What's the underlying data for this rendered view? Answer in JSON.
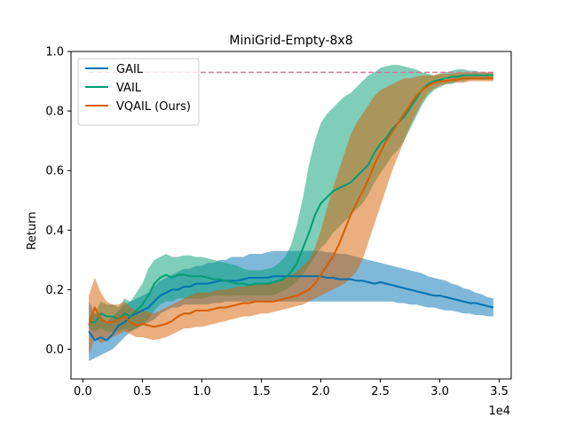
{
  "chart_data": {
    "type": "line",
    "title": "MiniGrid-Empty-8x8",
    "xlabel": "",
    "ylabel": "Return",
    "x_multiplier_label": "1e4",
    "xlim": [
      -1000,
      36000
    ],
    "ylim": [
      -0.1,
      1.0
    ],
    "x_ticks": [
      0,
      5000,
      10000,
      15000,
      20000,
      25000,
      30000,
      35000
    ],
    "x_tick_labels": [
      "0.0",
      "0.5",
      "1.0",
      "1.5",
      "2.0",
      "2.5",
      "3.0",
      "3.5"
    ],
    "y_ticks": [
      0.0,
      0.2,
      0.4,
      0.6,
      0.8,
      1.0
    ],
    "y_tick_labels": [
      "0.0",
      "0.2",
      "0.4",
      "0.6",
      "0.8",
      "1.0"
    ],
    "grid": false,
    "legend_position": "top-left",
    "reference_line": {
      "y": 0.93,
      "x_start": 500,
      "x_end": 34500,
      "color": "#d4759b",
      "style": "dashed"
    },
    "x": [
      500,
      1000,
      1500,
      2000,
      2500,
      3000,
      3500,
      4000,
      4500,
      5000,
      5500,
      6000,
      6500,
      7000,
      7500,
      8000,
      8500,
      9000,
      9500,
      10000,
      10500,
      11000,
      11500,
      12000,
      12500,
      13000,
      13500,
      14000,
      14500,
      15000,
      15500,
      16000,
      16500,
      17000,
      17500,
      18000,
      18500,
      19000,
      19500,
      20000,
      20500,
      21000,
      21500,
      22000,
      22500,
      23000,
      23500,
      24000,
      24500,
      25000,
      25500,
      26000,
      26500,
      27000,
      27500,
      28000,
      28500,
      29000,
      29500,
      30000,
      30500,
      31000,
      31500,
      32000,
      32500,
      33000,
      33500,
      34000,
      34500
    ],
    "series": [
      {
        "name": "GAIL",
        "color": "#0072b2",
        "values": [
          0.06,
          0.03,
          0.04,
          0.03,
          0.05,
          0.08,
          0.09,
          0.11,
          0.12,
          0.13,
          0.14,
          0.16,
          0.18,
          0.19,
          0.2,
          0.2,
          0.21,
          0.21,
          0.22,
          0.22,
          0.22,
          0.225,
          0.23,
          0.23,
          0.23,
          0.23,
          0.235,
          0.24,
          0.24,
          0.24,
          0.24,
          0.245,
          0.245,
          0.245,
          0.245,
          0.245,
          0.245,
          0.245,
          0.245,
          0.245,
          0.24,
          0.24,
          0.235,
          0.235,
          0.235,
          0.23,
          0.23,
          0.225,
          0.22,
          0.225,
          0.22,
          0.215,
          0.21,
          0.205,
          0.2,
          0.195,
          0.19,
          0.185,
          0.18,
          0.18,
          0.175,
          0.17,
          0.165,
          0.16,
          0.155,
          0.155,
          0.15,
          0.145,
          0.14
        ],
        "lower": [
          -0.04,
          -0.03,
          -0.02,
          -0.01,
          0.0,
          0.02,
          0.04,
          0.06,
          0.07,
          0.08,
          0.09,
          0.1,
          0.12,
          0.13,
          0.14,
          0.14,
          0.15,
          0.15,
          0.15,
          0.15,
          0.15,
          0.155,
          0.155,
          0.16,
          0.16,
          0.16,
          0.16,
          0.16,
          0.16,
          0.16,
          0.16,
          0.16,
          0.16,
          0.16,
          0.16,
          0.16,
          0.16,
          0.16,
          0.16,
          0.16,
          0.16,
          0.16,
          0.16,
          0.16,
          0.16,
          0.16,
          0.16,
          0.16,
          0.16,
          0.16,
          0.16,
          0.16,
          0.155,
          0.155,
          0.15,
          0.15,
          0.145,
          0.14,
          0.14,
          0.135,
          0.13,
          0.13,
          0.125,
          0.12,
          0.12,
          0.115,
          0.115,
          0.11,
          0.11
        ],
        "upper": [
          0.16,
          0.12,
          0.11,
          0.09,
          0.11,
          0.13,
          0.15,
          0.16,
          0.17,
          0.18,
          0.19,
          0.21,
          0.23,
          0.24,
          0.25,
          0.26,
          0.27,
          0.27,
          0.28,
          0.28,
          0.29,
          0.29,
          0.3,
          0.3,
          0.31,
          0.31,
          0.31,
          0.32,
          0.32,
          0.32,
          0.325,
          0.33,
          0.33,
          0.33,
          0.33,
          0.33,
          0.33,
          0.33,
          0.33,
          0.33,
          0.325,
          0.325,
          0.32,
          0.32,
          0.315,
          0.31,
          0.305,
          0.3,
          0.295,
          0.29,
          0.285,
          0.28,
          0.275,
          0.27,
          0.265,
          0.26,
          0.255,
          0.245,
          0.24,
          0.235,
          0.23,
          0.22,
          0.215,
          0.205,
          0.2,
          0.19,
          0.185,
          0.175,
          0.17
        ]
      },
      {
        "name": "VAIL",
        "color": "#009e73",
        "values": [
          0.09,
          0.09,
          0.12,
          0.11,
          0.11,
          0.1,
          0.12,
          0.11,
          0.13,
          0.15,
          0.18,
          0.22,
          0.24,
          0.25,
          0.24,
          0.25,
          0.25,
          0.245,
          0.245,
          0.245,
          0.24,
          0.235,
          0.235,
          0.23,
          0.225,
          0.22,
          0.22,
          0.215,
          0.22,
          0.22,
          0.22,
          0.225,
          0.23,
          0.24,
          0.26,
          0.29,
          0.34,
          0.39,
          0.45,
          0.49,
          0.51,
          0.53,
          0.54,
          0.55,
          0.56,
          0.58,
          0.6,
          0.62,
          0.66,
          0.69,
          0.71,
          0.74,
          0.76,
          0.78,
          0.81,
          0.84,
          0.87,
          0.89,
          0.9,
          0.905,
          0.91,
          0.915,
          0.915,
          0.92,
          0.92,
          0.92,
          0.92,
          0.92,
          0.92
        ],
        "lower": [
          0.07,
          0.06,
          0.07,
          0.06,
          0.06,
          0.06,
          0.07,
          0.06,
          0.07,
          0.08,
          0.1,
          0.13,
          0.15,
          0.16,
          0.16,
          0.17,
          0.17,
          0.17,
          0.17,
          0.17,
          0.175,
          0.18,
          0.18,
          0.18,
          0.18,
          0.18,
          0.18,
          0.18,
          0.18,
          0.18,
          0.18,
          0.18,
          0.19,
          0.2,
          0.21,
          0.23,
          0.25,
          0.28,
          0.31,
          0.34,
          0.36,
          0.39,
          0.41,
          0.43,
          0.45,
          0.47,
          0.49,
          0.52,
          0.56,
          0.59,
          0.62,
          0.65,
          0.67,
          0.7,
          0.74,
          0.78,
          0.82,
          0.85,
          0.87,
          0.88,
          0.89,
          0.89,
          0.9,
          0.9,
          0.905,
          0.905,
          0.905,
          0.905,
          0.905
        ],
        "upper": [
          0.11,
          0.12,
          0.16,
          0.15,
          0.15,
          0.14,
          0.17,
          0.16,
          0.19,
          0.22,
          0.27,
          0.3,
          0.31,
          0.32,
          0.31,
          0.31,
          0.315,
          0.315,
          0.31,
          0.31,
          0.305,
          0.3,
          0.295,
          0.29,
          0.285,
          0.28,
          0.27,
          0.265,
          0.265,
          0.265,
          0.27,
          0.275,
          0.29,
          0.31,
          0.35,
          0.42,
          0.51,
          0.62,
          0.7,
          0.76,
          0.79,
          0.81,
          0.83,
          0.85,
          0.86,
          0.88,
          0.9,
          0.92,
          0.93,
          0.945,
          0.95,
          0.955,
          0.955,
          0.95,
          0.945,
          0.94,
          0.93,
          0.925,
          0.92,
          0.925,
          0.93,
          0.935,
          0.94,
          0.94,
          0.935,
          0.935,
          0.93,
          0.93,
          0.93
        ]
      },
      {
        "name": "VQAIL (Ours)",
        "color": "#d55e00",
        "values": [
          0.08,
          0.14,
          0.1,
          0.09,
          0.09,
          0.1,
          0.11,
          0.09,
          0.08,
          0.085,
          0.08,
          0.075,
          0.08,
          0.085,
          0.095,
          0.11,
          0.12,
          0.12,
          0.13,
          0.13,
          0.13,
          0.135,
          0.14,
          0.14,
          0.145,
          0.15,
          0.155,
          0.155,
          0.16,
          0.16,
          0.16,
          0.16,
          0.165,
          0.17,
          0.175,
          0.18,
          0.19,
          0.2,
          0.22,
          0.25,
          0.28,
          0.31,
          0.35,
          0.4,
          0.45,
          0.49,
          0.53,
          0.57,
          0.62,
          0.66,
          0.7,
          0.73,
          0.76,
          0.79,
          0.82,
          0.85,
          0.87,
          0.885,
          0.895,
          0.9,
          0.9,
          0.905,
          0.905,
          0.91,
          0.91,
          0.91,
          0.91,
          0.91,
          0.91
        ],
        "lower": [
          -0.02,
          0.04,
          0.02,
          0.03,
          0.04,
          0.05,
          0.06,
          0.05,
          0.04,
          0.04,
          0.035,
          0.03,
          0.035,
          0.04,
          0.05,
          0.06,
          0.07,
          0.07,
          0.075,
          0.075,
          0.08,
          0.085,
          0.09,
          0.095,
          0.1,
          0.105,
          0.11,
          0.11,
          0.115,
          0.12,
          0.12,
          0.125,
          0.13,
          0.135,
          0.14,
          0.145,
          0.15,
          0.16,
          0.17,
          0.18,
          0.19,
          0.2,
          0.21,
          0.22,
          0.24,
          0.26,
          0.3,
          0.36,
          0.42,
          0.48,
          0.54,
          0.6,
          0.65,
          0.7,
          0.75,
          0.79,
          0.83,
          0.86,
          0.875,
          0.885,
          0.89,
          0.895,
          0.895,
          0.895,
          0.9,
          0.9,
          0.9,
          0.9,
          0.9
        ],
        "upper": [
          0.18,
          0.24,
          0.19,
          0.16,
          0.15,
          0.15,
          0.16,
          0.14,
          0.13,
          0.13,
          0.125,
          0.12,
          0.13,
          0.14,
          0.15,
          0.16,
          0.17,
          0.18,
          0.19,
          0.19,
          0.19,
          0.195,
          0.2,
          0.2,
          0.205,
          0.21,
          0.21,
          0.215,
          0.215,
          0.22,
          0.22,
          0.225,
          0.23,
          0.24,
          0.25,
          0.26,
          0.28,
          0.3,
          0.34,
          0.4,
          0.47,
          0.54,
          0.6,
          0.66,
          0.72,
          0.76,
          0.79,
          0.82,
          0.85,
          0.87,
          0.88,
          0.89,
          0.9,
          0.91,
          0.91,
          0.915,
          0.92,
          0.92,
          0.92,
          0.925,
          0.925,
          0.925,
          0.93,
          0.93,
          0.93,
          0.93,
          0.93,
          0.93,
          0.93
        ]
      }
    ]
  }
}
